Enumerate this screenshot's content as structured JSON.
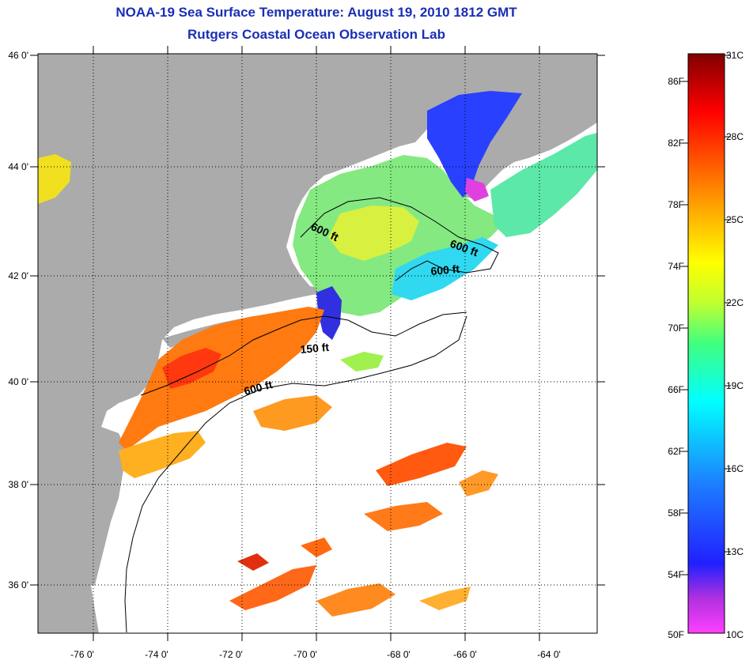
{
  "header": {
    "title": "NOAA-19 Sea Surface Temperature:  August 19, 2010 1812 GMT",
    "subtitle": "Rutgers Coastal Ocean Observation Lab"
  },
  "map": {
    "lat_labels": [
      "46 0'",
      "44 0'",
      "42 0'",
      "40 0'",
      "38 0'",
      "36 0'"
    ],
    "lon_labels": [
      "-76 0'",
      "-74 0'",
      "-72 0'",
      "-70 0'",
      "-68 0'",
      "-66 0'",
      "-64 0'"
    ],
    "depth_labels": [
      "600 ft",
      "600 ft",
      "600 ft",
      "150 ft",
      "600 ft"
    ],
    "colors": {
      "land": "#ababab",
      "ocean_no_data": "#ffffff",
      "grid": "#000000"
    }
  },
  "colorbar": {
    "fahrenheit_labels": [
      "86F",
      "82F",
      "78F",
      "74F",
      "70F",
      "66F",
      "62F",
      "58F",
      "54F",
      "50F"
    ],
    "celsius_labels": [
      "31C",
      "28C",
      "25C",
      "22C",
      "19C",
      "16C",
      "13C",
      "10C"
    ],
    "range_celsius": [
      10,
      31
    ],
    "colors": [
      "#ff40ff",
      "#6020c0",
      "#1010ff",
      "#1e90ff",
      "#00ffff",
      "#3cff6a",
      "#d0ff30",
      "#ffff00",
      "#ffb000",
      "#ff6000",
      "#ff0000",
      "#800000"
    ]
  }
}
